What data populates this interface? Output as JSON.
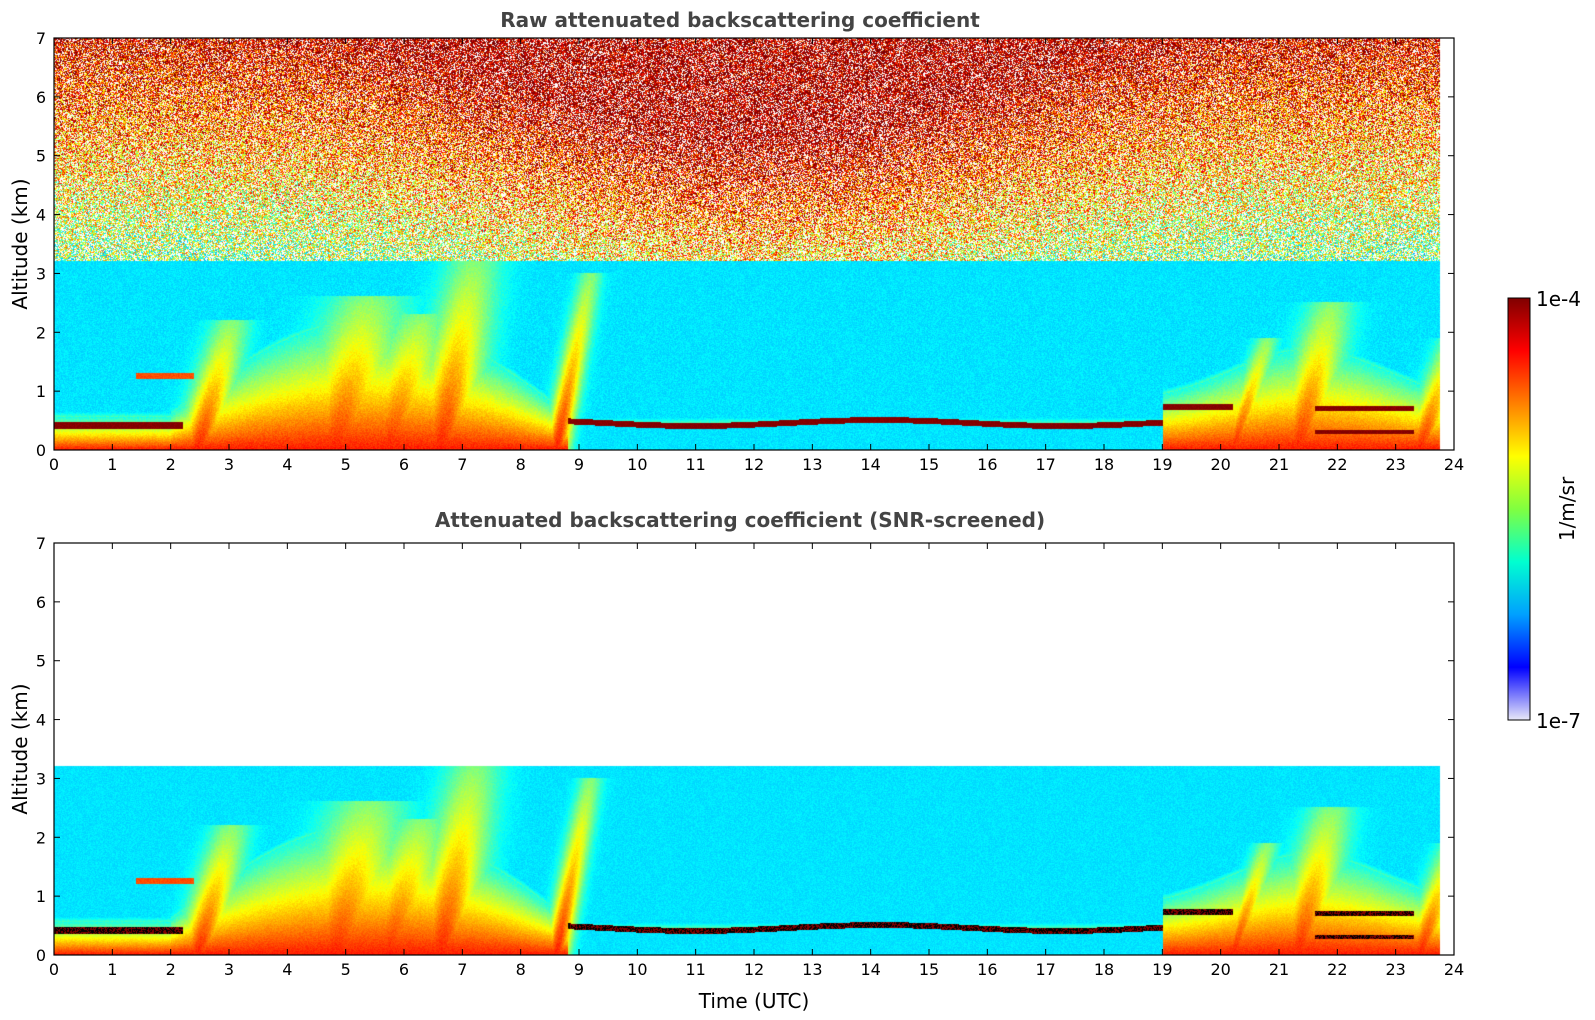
{
  "chart_data": [
    {
      "type": "heatmap",
      "title": "Raw attenuated backscattering coefficient",
      "xlabel": "",
      "ylabel": "Altitude (km)",
      "xlim": [
        0,
        24
      ],
      "ylim": [
        0,
        7
      ],
      "xticks": [
        "0",
        "1",
        "2",
        "3",
        "4",
        "5",
        "6",
        "7",
        "8",
        "9",
        "10",
        "11",
        "12",
        "13",
        "14",
        "15",
        "16",
        "17",
        "18",
        "19",
        "20",
        "21",
        "22",
        "23",
        "24"
      ],
      "yticks": [
        "0",
        "1",
        "2",
        "3",
        "4",
        "5",
        "6",
        "7"
      ],
      "screened": false
    },
    {
      "type": "heatmap",
      "title": "Attenuated backscattering coefficient (SNR-screened)",
      "xlabel": "Time (UTC)",
      "ylabel": "Altitude (km)",
      "xlim": [
        0,
        24
      ],
      "ylim": [
        0,
        7
      ],
      "xticks": [
        "0",
        "1",
        "2",
        "3",
        "4",
        "5",
        "6",
        "7",
        "8",
        "9",
        "10",
        "11",
        "12",
        "13",
        "14",
        "15",
        "16",
        "17",
        "18",
        "19",
        "20",
        "21",
        "22",
        "23",
        "24"
      ],
      "yticks": [
        "0",
        "1",
        "2",
        "3",
        "4",
        "5",
        "6",
        "7"
      ],
      "screened": true
    }
  ],
  "colorbar": {
    "label": "1/m/sr",
    "max_label": "1e-4",
    "min_label": "1e-7",
    "colormap": "jet",
    "range": [
      1e-07,
      0.0001
    ],
    "colors": [
      "#e8e8f8",
      "#0000ff",
      "#00a0ff",
      "#00ffd0",
      "#80ff40",
      "#ffff00",
      "#ff8000",
      "#ff0000",
      "#800000"
    ]
  }
}
